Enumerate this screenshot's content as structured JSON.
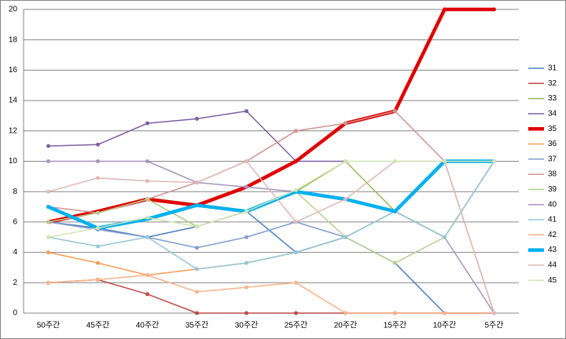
{
  "chart_data": {
    "type": "line",
    "categories": [
      "50주간",
      "45주간",
      "40주간",
      "35주간",
      "30주간",
      "25주간",
      "20주간",
      "15주간",
      "10주간",
      "5주간"
    ],
    "ylim": [
      0,
      20
    ],
    "yticks": [
      0,
      2,
      4,
      6,
      8,
      10,
      12,
      14,
      16,
      18,
      20
    ],
    "grid": true,
    "legend": "right",
    "series": [
      {
        "name": "31",
        "color": "#4a7ebb",
        "linewidth": 1.5,
        "values": [
          6,
          5.6,
          5,
          5.7,
          6.7,
          4,
          5,
          3.3,
          0,
          0
        ]
      },
      {
        "name": "32",
        "color": "#be4b48",
        "linewidth": 1.5,
        "values": [
          2,
          2.2,
          1.25,
          0,
          0,
          0,
          0,
          0,
          0,
          0
        ]
      },
      {
        "name": "33",
        "color": "#98b954",
        "linewidth": 1.5,
        "values": [
          6,
          6.7,
          7.5,
          5.7,
          6.7,
          8,
          10,
          6.7,
          10,
          10
        ]
      },
      {
        "name": "34",
        "color": "#7d60a0",
        "linewidth": 1.5,
        "values": [
          11,
          11.1,
          12.5,
          12.8,
          13.3,
          10,
          10,
          null,
          null,
          null
        ]
      },
      {
        "name": "35",
        "color": "#e00000",
        "linewidth": 4.5,
        "values": [
          6,
          6.7,
          7.5,
          7.1,
          8.3,
          10,
          12.5,
          13.3,
          20,
          20
        ]
      },
      {
        "name": "36",
        "color": "#f59d56",
        "linewidth": 1.5,
        "values": [
          4,
          3.3,
          2.5,
          2.9,
          3.3,
          4,
          5,
          6.7,
          5,
          10
        ]
      },
      {
        "name": "37",
        "color": "#7f9fcf",
        "linewidth": 1.5,
        "values": [
          6,
          5.5,
          5,
          4.3,
          5,
          6,
          5,
          6.7,
          5,
          10
        ]
      },
      {
        "name": "38",
        "color": "#d09391",
        "linewidth": 1.5,
        "values": [
          7,
          6.6,
          7.5,
          8.6,
          10,
          12,
          12.5,
          13.3,
          10,
          0
        ]
      },
      {
        "name": "39",
        "color": "#b6cf8f",
        "linewidth": 1.5,
        "values": [
          6,
          6.6,
          7.5,
          5.7,
          6.7,
          8,
          5,
          3.3,
          5,
          10
        ]
      },
      {
        "name": "40",
        "color": "#a794bf",
        "linewidth": 1.5,
        "values": [
          10,
          10,
          10,
          8.6,
          8.3,
          8,
          7.5,
          6.7,
          5,
          0
        ]
      },
      {
        "name": "41",
        "color": "#93c6d9",
        "linewidth": 1.5,
        "values": [
          5,
          4.4,
          5,
          2.9,
          3.3,
          4,
          5,
          6.7,
          5,
          10
        ]
      },
      {
        "name": "42",
        "color": "#f9b38a",
        "linewidth": 1.5,
        "values": [
          2,
          2.2,
          2.5,
          1.4,
          1.7,
          2,
          0,
          0,
          0,
          0
        ]
      },
      {
        "name": "43",
        "color": "#00b0f0",
        "linewidth": 4.5,
        "values": [
          7,
          5.6,
          6.2,
          7.1,
          6.7,
          8,
          7.5,
          6.7,
          10,
          10
        ]
      },
      {
        "name": "44",
        "color": "#e0b8b6",
        "linewidth": 1.5,
        "values": [
          8,
          8.9,
          8.7,
          8.6,
          10,
          6,
          7.5,
          10,
          10,
          0
        ]
      },
      {
        "name": "45",
        "color": "#d3e4b5",
        "linewidth": 1.5,
        "values": [
          5,
          5.6,
          6.3,
          5.7,
          6.7,
          8.1,
          10,
          10,
          10,
          10
        ]
      }
    ]
  }
}
